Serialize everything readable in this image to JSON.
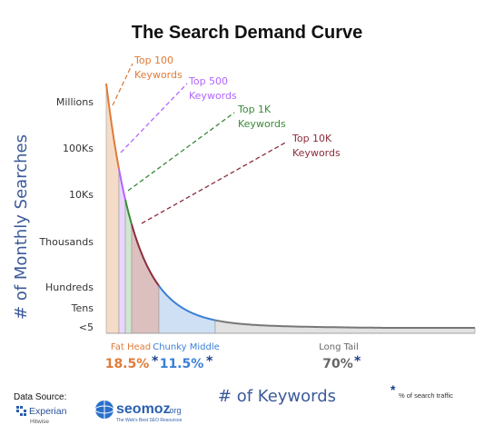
{
  "chart_data": {
    "type": "area",
    "title": "The Search Demand Curve",
    "ylabel": "# of Monthly Searches",
    "xlabel": "# of Keywords",
    "y_ticks": [
      "Millions",
      "100Ks",
      "10Ks",
      "Thousands",
      "Hundreds",
      "Tens",
      "<5"
    ],
    "annotations": [
      {
        "line1": "Top 100",
        "line2": "Keywords",
        "color": "#e07b39"
      },
      {
        "line1": "Top 500",
        "line2": "Keywords",
        "color": "#b266ff"
      },
      {
        "line1": "Top 1K",
        "line2": "Keywords",
        "color": "#3a8a3a"
      },
      {
        "line1": "Top 10K",
        "line2": "Keywords",
        "color": "#8b2d3a"
      }
    ],
    "segments": [
      {
        "name": "Fat Head",
        "percent": "18.5%",
        "color": "#e07b39"
      },
      {
        "name": "Chunky Middle",
        "percent": "11.5%",
        "color": "#3a7fd5"
      },
      {
        "name": "Long Tail",
        "percent": "70%",
        "color": "#666666"
      }
    ],
    "star": "*",
    "footnote": "% of search traffic"
  },
  "footer": {
    "data_source_label": "Data Source:",
    "experian": "Experian",
    "hitwise": "Hitwise",
    "seomoz": "seomoz",
    "seomoz_tld": ".org",
    "seomoz_tagline": "The Web's Best SEO Resources"
  }
}
